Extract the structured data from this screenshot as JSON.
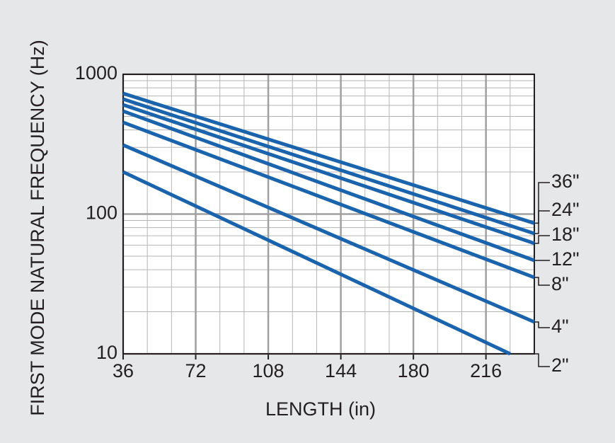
{
  "chart_data": {
    "type": "line",
    "x_label": "LENGTH (in)",
    "y_label": "FIRST MODE NATURAL FREQUENCY  (Hz)",
    "xlim": [
      36,
      240
    ],
    "xticks": [
      36,
      72,
      108,
      144,
      180,
      216
    ],
    "ylim": [
      10,
      1000
    ],
    "yticks": [
      10,
      100,
      1000
    ],
    "y_scale": "log",
    "grid": true,
    "series": [
      {
        "name": "36\"",
        "color": "#1a63ad",
        "x": [
          36,
          240
        ],
        "values": [
          730,
          86
        ]
      },
      {
        "name": "24\"",
        "color": "#1a63ad",
        "x": [
          36,
          240
        ],
        "values": [
          665,
          72.6
        ]
      },
      {
        "name": "18\"",
        "color": "#1a63ad",
        "x": [
          36,
          240
        ],
        "values": [
          605,
          61.7
        ]
      },
      {
        "name": "12\"",
        "color": "#1a63ad",
        "x": [
          36,
          240
        ],
        "values": [
          545,
          46.6
        ]
      },
      {
        "name": "8\"",
        "color": "#1a63ad",
        "x": [
          36,
          240
        ],
        "values": [
          453,
          35.2
        ]
      },
      {
        "name": "4\"",
        "color": "#1a63ad",
        "x": [
          36,
          240
        ],
        "values": [
          312,
          16.9
        ]
      },
      {
        "name": "2\"",
        "color": "#1a63ad",
        "x": [
          36,
          228
        ],
        "values": [
          200,
          10
        ]
      }
    ]
  }
}
